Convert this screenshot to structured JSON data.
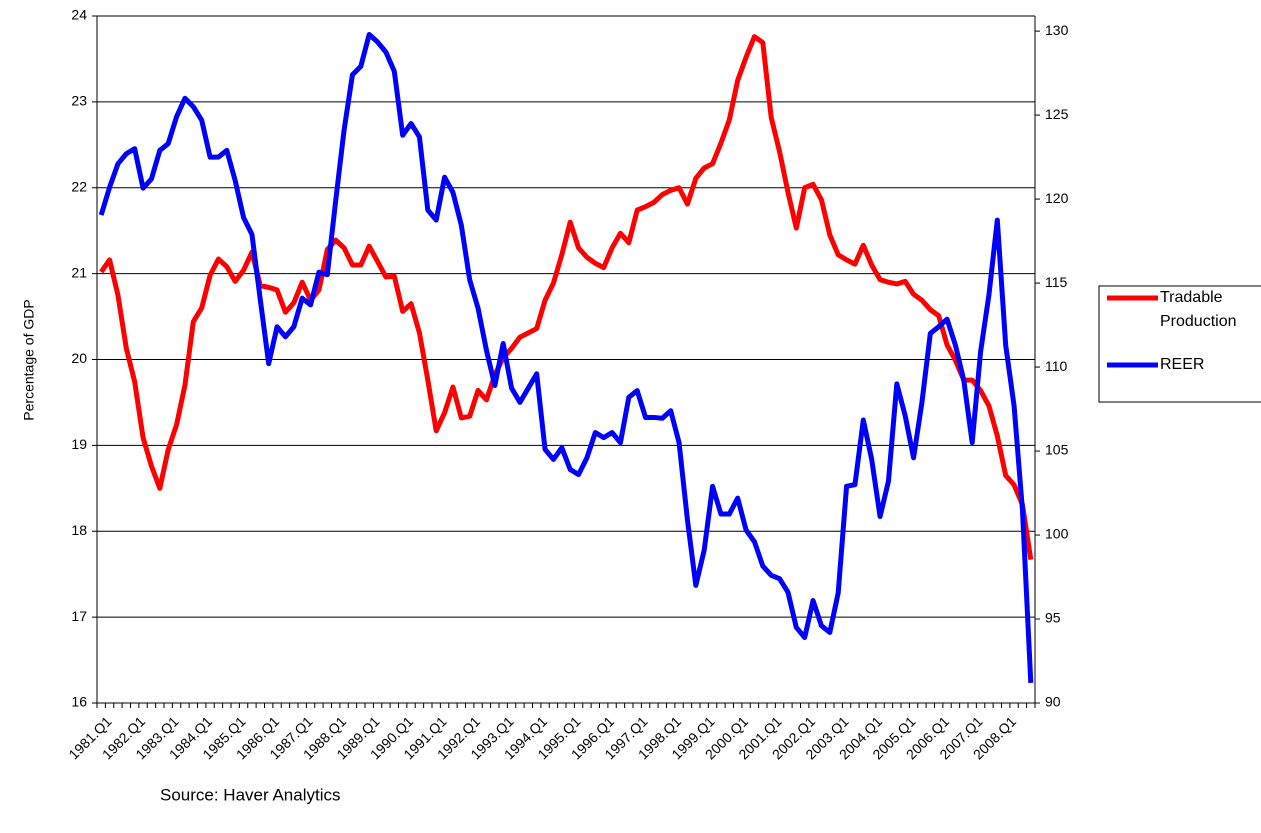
{
  "chart_data": {
    "type": "line",
    "y_label": "Percentage of GDP",
    "note": "Source: Haver Analytics",
    "categories": [
      "1981.Q1",
      null,
      null,
      null,
      "1982.Q1",
      null,
      null,
      null,
      "1983.Q1",
      null,
      null,
      null,
      "1984.Q1",
      null,
      null,
      null,
      "1985.Q1",
      null,
      null,
      null,
      "1986.Q1",
      null,
      null,
      null,
      "1987.Q1",
      null,
      null,
      null,
      "1988.Q1",
      null,
      null,
      null,
      "1989.Q1",
      null,
      null,
      null,
      "1990.Q1",
      null,
      null,
      null,
      "1991.Q1",
      null,
      null,
      null,
      "1992.Q1",
      null,
      null,
      null,
      "1993.Q1",
      null,
      null,
      null,
      "1994.Q1",
      null,
      null,
      null,
      "1995.Q1",
      null,
      null,
      null,
      "1996.Q1",
      null,
      null,
      null,
      "1997.Q1",
      null,
      null,
      null,
      "1998.Q1",
      null,
      null,
      null,
      "1999.Q1",
      null,
      null,
      null,
      "2000.Q1",
      null,
      null,
      null,
      "2001.Q1",
      null,
      null,
      null,
      "2002.Q1",
      null,
      null,
      null,
      "2003.Q1",
      null,
      null,
      null,
      "2004.Q1",
      null,
      null,
      null,
      "2005.Q1",
      null,
      null,
      null,
      "2006.Q1",
      null,
      null,
      null,
      "2007.Q1",
      null,
      null,
      null,
      "2008.Q1",
      null,
      null,
      null
    ],
    "series": [
      {
        "name": "Tradable Production",
        "color": "#ff0000",
        "values": [
          21.02,
          21.16,
          20.75,
          20.13,
          19.74,
          19.09,
          18.76,
          18.5,
          18.95,
          19.24,
          19.7,
          20.44,
          20.6,
          20.98,
          21.17,
          21.08,
          20.91,
          21.04,
          21.25,
          20.86,
          20.84,
          20.81,
          20.55,
          20.66,
          20.9,
          20.69,
          20.81,
          21.28,
          21.39,
          21.3,
          21.1,
          21.1,
          21.32,
          21.14,
          20.96,
          20.97,
          20.56,
          20.65,
          20.31,
          19.76,
          19.17,
          19.38,
          19.68,
          19.32,
          19.34,
          19.64,
          19.53,
          19.82,
          20.02,
          20.13,
          20.26,
          20.31,
          20.36,
          20.69,
          20.89,
          21.22,
          21.6,
          21.3,
          21.19,
          21.12,
          21.07,
          21.3,
          21.47,
          21.36,
          21.74,
          21.78,
          21.83,
          21.92,
          21.97,
          22.0,
          21.81,
          22.11,
          22.23,
          22.28,
          22.52,
          22.79,
          23.25,
          23.52,
          23.76,
          23.69,
          22.82,
          22.42,
          21.95,
          21.53,
          22.0,
          22.04,
          21.86,
          21.45,
          21.22,
          21.16,
          21.11,
          21.33,
          21.1,
          20.93,
          20.9,
          20.88,
          20.91,
          20.76,
          20.69,
          20.58,
          20.51,
          20.17,
          19.99,
          19.76,
          19.76,
          19.64,
          19.46,
          19.11,
          18.65,
          18.54,
          18.31,
          17.67
        ]
      },
      {
        "name": "REER",
        "color": "#0000ff",
        "axis": "y2",
        "values": [
          119.05,
          120.7,
          122.1,
          122.7,
          123.0,
          120.65,
          121.2,
          122.9,
          123.3,
          124.9,
          126.0,
          125.5,
          124.7,
          122.5,
          122.5,
          122.9,
          121.1,
          118.9,
          117.9,
          114.0,
          110.2,
          112.4,
          111.8,
          112.4,
          114.1,
          113.7,
          115.65,
          115.5,
          119.9,
          124.1,
          127.4,
          127.9,
          129.8,
          129.35,
          128.75,
          127.6,
          123.8,
          124.5,
          123.7,
          119.35,
          118.75,
          121.3,
          120.4,
          118.45,
          115.2,
          113.5,
          111.0,
          108.9,
          111.4,
          108.75,
          107.9,
          108.75,
          109.6,
          105.1,
          104.5,
          105.2,
          103.9,
          103.6,
          104.6,
          106.1,
          105.8,
          106.1,
          105.5,
          108.2,
          108.6,
          107.0,
          107.0,
          106.95,
          107.4,
          105.5,
          100.9,
          97.0,
          99.1,
          102.9,
          101.25,
          101.25,
          102.2,
          100.3,
          99.6,
          98.15,
          97.6,
          97.4,
          96.6,
          94.5,
          93.9,
          96.1,
          94.6,
          94.2,
          96.55,
          102.9,
          103.0,
          106.85,
          104.5,
          101.1,
          103.2,
          109.0,
          107.1,
          104.6,
          107.9,
          112.0,
          112.4,
          112.85,
          111.3,
          109.2,
          105.5,
          110.9,
          114.3,
          118.75,
          111.3,
          107.7,
          101.5,
          91.2
        ]
      }
    ],
    "ylim": [
      16,
      24
    ],
    "yticks": [
      16,
      17,
      18,
      19,
      20,
      21,
      22,
      23,
      24
    ],
    "y2lim": [
      90,
      130.9
    ],
    "y2ticks": [
      90,
      95,
      100,
      105,
      110,
      115,
      120,
      125,
      130
    ],
    "grid": true,
    "legend": "right"
  }
}
